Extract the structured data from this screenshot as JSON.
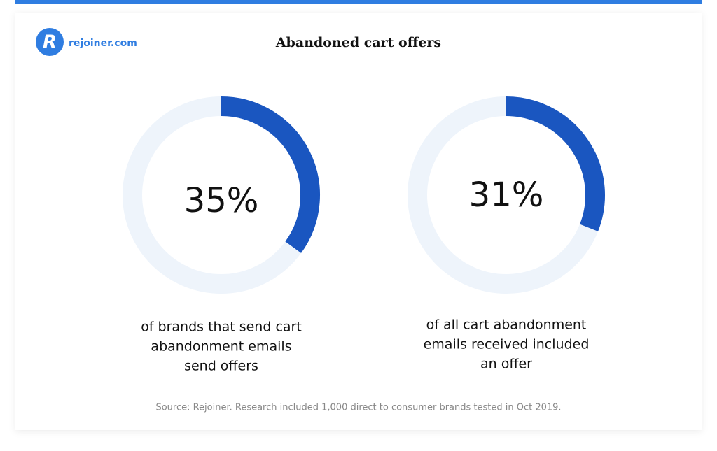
{
  "logo": {
    "icon": "R",
    "text": "rejoiner.com"
  },
  "title": "Abandoned cart offers",
  "chart_data": [
    {
      "type": "donut",
      "values": [
        35
      ],
      "value_labels": [
        "35%"
      ],
      "ylim": [
        0,
        100
      ],
      "color": "#1a56c0",
      "track_color": "#eef4fb",
      "caption": [
        "of brands that send cart",
        "abandonment emails",
        "send offers"
      ]
    },
    {
      "type": "donut",
      "values": [
        31
      ],
      "value_labels": [
        "31%"
      ],
      "ylim": [
        0,
        100
      ],
      "color": "#1a56c0",
      "track_color": "#eef4fb",
      "caption": [
        "of all cart abandonment",
        "emails received included",
        "an offer"
      ]
    }
  ],
  "source": "Source: Rejoiner. Research included 1,000 direct to consumer brands tested in Oct 2019."
}
